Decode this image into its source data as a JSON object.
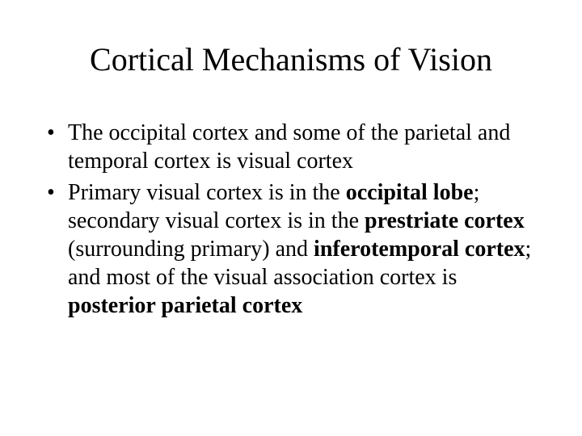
{
  "slide": {
    "title": "Cortical Mechanisms of Vision",
    "bullets": [
      {
        "segments": [
          {
            "text": "The occipital cortex and some of the parietal and temporal cortex is visual cortex",
            "bold": false
          }
        ]
      },
      {
        "segments": [
          {
            "text": "Primary visual cortex is in the ",
            "bold": false
          },
          {
            "text": "occipital lobe",
            "bold": true
          },
          {
            "text": "; secondary visual cortex is in the ",
            "bold": false
          },
          {
            "text": "prestriate cortex",
            "bold": true
          },
          {
            "text": " (surrounding primary) and ",
            "bold": false
          },
          {
            "text": "inferotemporal cortex",
            "bold": true
          },
          {
            "text": "; and most of the visual association cortex is ",
            "bold": false
          },
          {
            "text": "posterior parietal cortex",
            "bold": true
          }
        ]
      }
    ]
  },
  "style": {
    "background_color": "#ffffff",
    "text_color": "#000000",
    "title_fontsize": 40,
    "body_fontsize": 28,
    "font_family": "Times New Roman"
  }
}
